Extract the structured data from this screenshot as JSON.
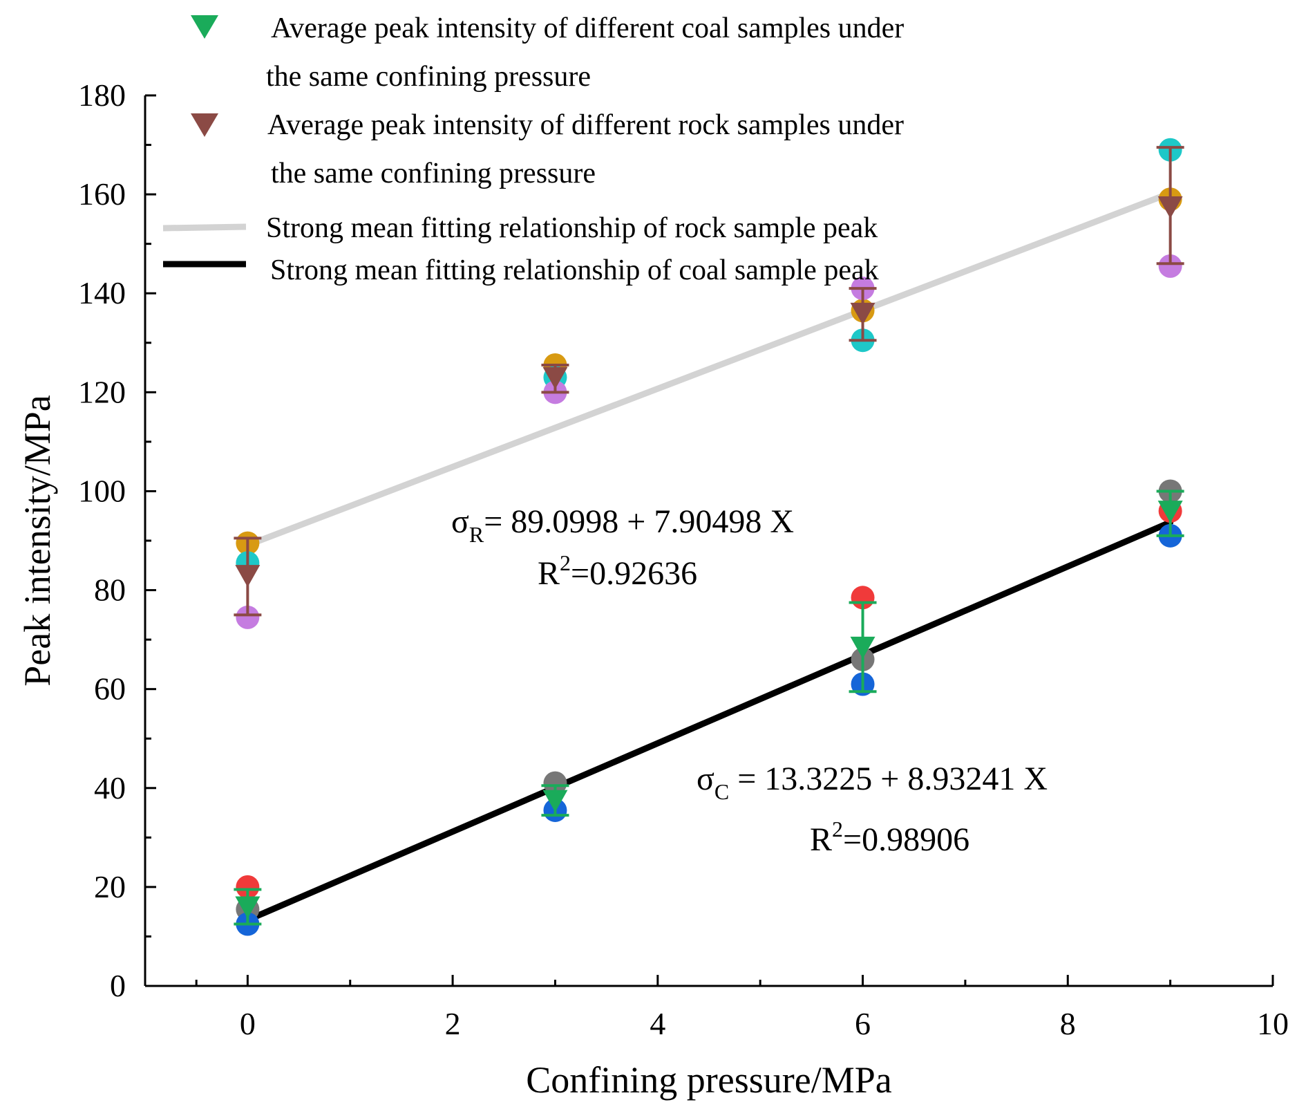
{
  "chart_data": {
    "type": "scatter",
    "xlabel": "Confining pressure/MPa",
    "ylabel": "Peak intensity/MPa",
    "xlim": [
      -1,
      10
    ],
    "ylim": [
      0,
      180
    ],
    "xticks": [
      0,
      2,
      4,
      6,
      8,
      10
    ],
    "yticks": [
      0,
      20,
      40,
      60,
      80,
      100,
      120,
      140,
      160,
      180
    ],
    "legend_position": "top",
    "grid": false,
    "individual_samples": [
      {
        "group": "rock",
        "color": "#d89a12",
        "points": [
          {
            "x": 0,
            "y": 89.5
          },
          {
            "x": 3,
            "y": 125.5
          },
          {
            "x": 6,
            "y": 136.5
          },
          {
            "x": 9,
            "y": 159
          }
        ]
      },
      {
        "group": "rock",
        "color": "#1ec8c8",
        "points": [
          {
            "x": 0,
            "y": 85.5
          },
          {
            "x": 3,
            "y": 123
          },
          {
            "x": 6,
            "y": 130.5
          },
          {
            "x": 9,
            "y": 169
          }
        ]
      },
      {
        "group": "rock",
        "color": "#c57ce0",
        "points": [
          {
            "x": 0,
            "y": 74.5
          },
          {
            "x": 3,
            "y": 120
          },
          {
            "x": 6,
            "y": 141
          },
          {
            "x": 9,
            "y": 145.5
          }
        ]
      },
      {
        "group": "coal",
        "color": "#f03a3a",
        "points": [
          {
            "x": 0,
            "y": 20
          },
          {
            "x": 6,
            "y": 78.5
          },
          {
            "x": 9,
            "y": 96
          }
        ]
      },
      {
        "group": "coal",
        "color": "#777777",
        "points": [
          {
            "x": 0,
            "y": 15.5
          },
          {
            "x": 3,
            "y": 41
          },
          {
            "x": 6,
            "y": 66
          },
          {
            "x": 9,
            "y": 100
          }
        ]
      },
      {
        "group": "coal",
        "color": "#1565d8",
        "points": [
          {
            "x": 0,
            "y": 12.5
          },
          {
            "x": 3,
            "y": 35.5
          },
          {
            "x": 6,
            "y": 61
          },
          {
            "x": 9,
            "y": 91
          }
        ]
      }
    ],
    "series": [
      {
        "name": "Average peak intensity of different coal samples under the same confining pressure",
        "color": "#1aab5a",
        "marker": "triangle-down",
        "x": [
          0,
          3,
          6,
          9
        ],
        "y": [
          16,
          37.5,
          68.5,
          96
        ],
        "err_low": [
          12.5,
          34.5,
          59.5,
          91
        ],
        "err_high": [
          19.5,
          40.5,
          77.5,
          100
        ]
      },
      {
        "name": "Average peak intensity of different rock samples under the same confining pressure",
        "color": "#8b4a45",
        "marker": "triangle-down",
        "x": [
          0,
          3,
          6,
          9
        ],
        "y": [
          83,
          123,
          136,
          157.5
        ],
        "err_low": [
          75,
          120,
          130.5,
          146
        ],
        "err_high": [
          90.5,
          125.5,
          141,
          169.5
        ]
      }
    ],
    "fits": [
      {
        "name": "Strong mean fitting relationship of rock sample peak",
        "color": "#d3d3d3",
        "intercept": 89.0998,
        "slope": 7.90498,
        "x_range": [
          0,
          9
        ]
      },
      {
        "name": "Strong mean fitting relationship of coal sample peak",
        "color": "#000000",
        "intercept": 13.3225,
        "slope": 8.93241,
        "x_range": [
          0,
          9
        ]
      }
    ],
    "legend": [
      {
        "line1": "Average peak intensity of different coal samples under",
        "line2": "the same confining pressure"
      },
      {
        "line1": "Average peak intensity of different rock samples under",
        "line2": "the same confining pressure"
      },
      {
        "line1": "Strong mean fitting relationship of rock sample peak"
      },
      {
        "line1": "Strong mean fitting relationship of coal sample peak"
      }
    ],
    "annotations": {
      "rock_eq": {
        "sigma": "σ",
        "sub": "R",
        "rest": "= 89.0998 + 7.90498  X",
        "r2_prefix": "R",
        "r2_sup": "2",
        "r2_value": "=0.92636"
      },
      "coal_eq": {
        "sigma": "σ",
        "sub": "C",
        "rest": " = 13.3225 + 8.93241 X",
        "r2_prefix": "R",
        "r2_sup": "2",
        "r2_value": "=0.98906"
      }
    }
  }
}
